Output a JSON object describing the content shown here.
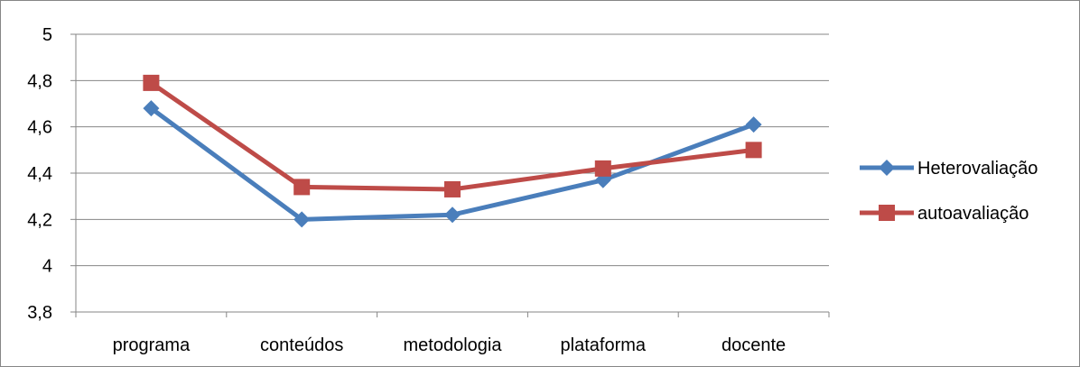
{
  "chart_data": {
    "type": "line",
    "title": "",
    "xlabel": "",
    "ylabel": "",
    "categories": [
      "programa",
      "conteúdos",
      "metodologia",
      "plataforma",
      "docente"
    ],
    "ylim": [
      3.8,
      5
    ],
    "y_ticks": [
      3.8,
      4,
      4.2,
      4.4,
      4.6,
      4.8,
      5
    ],
    "y_tick_labels": [
      "3,8",
      "4",
      "4,2",
      "4,4",
      "4,6",
      "4,8",
      "5"
    ],
    "grid": true,
    "legend_position": "right",
    "series": [
      {
        "name": "Heterovaliação",
        "color": "#4a7ebb",
        "marker": "diamond",
        "values": [
          4.68,
          4.2,
          4.22,
          4.37,
          4.61
        ]
      },
      {
        "name": "autoavaliação",
        "color": "#be4b48",
        "marker": "square",
        "values": [
          4.79,
          4.34,
          4.33,
          4.42,
          4.5
        ]
      }
    ]
  }
}
